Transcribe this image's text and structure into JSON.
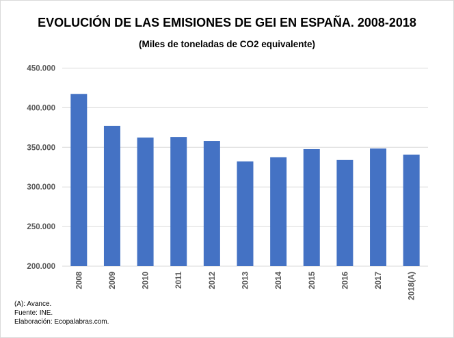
{
  "chart_data": {
    "type": "bar",
    "title": "EVOLUCIÓN DE LAS EMISIONES DE GEI EN ESPAÑA. 2008-2018",
    "subtitle": "(Miles de toneladas de CO2 equivalente)",
    "categories": [
      "2008",
      "2009",
      "2010",
      "2011",
      "2012",
      "2013",
      "2014",
      "2015",
      "2016",
      "2017",
      "2018(A)"
    ],
    "values": [
      417400,
      377100,
      362300,
      363100,
      358000,
      332200,
      337400,
      347700,
      334000,
      348500,
      340800
    ],
    "ylim": [
      200000,
      450000
    ],
    "yticks": [
      200000,
      250000,
      300000,
      350000,
      400000,
      450000
    ],
    "ytick_labels": [
      "200.000",
      "250.000",
      "300.000",
      "350.000",
      "400.000",
      "450.000"
    ],
    "grid": true,
    "bar_color": "#4472c4",
    "xlabel": "",
    "ylabel": ""
  },
  "notes": [
    "(A): Avance.",
    "Fuente: INE.",
    "Elaboración: Ecopalabras.com."
  ]
}
